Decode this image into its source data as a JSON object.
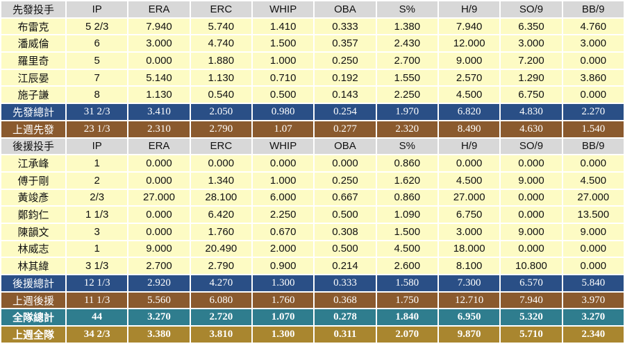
{
  "columns": [
    "IP",
    "ERA",
    "ERC",
    "WHIP",
    "OBA",
    "S%",
    "H/9",
    "SO/9",
    "BB/9"
  ],
  "sections": [
    {
      "header": "先發投手",
      "rows": [
        {
          "name": "布雷克",
          "values": [
            "5 2/3",
            "7.940",
            "5.740",
            "1.410",
            "0.333",
            "1.380",
            "7.940",
            "6.350",
            "4.760"
          ]
        },
        {
          "name": "潘威倫",
          "values": [
            "6",
            "3.000",
            "4.740",
            "1.500",
            "0.357",
            "2.430",
            "12.000",
            "3.000",
            "3.000"
          ]
        },
        {
          "name": "羅里奇",
          "values": [
            "5",
            "0.000",
            "1.880",
            "1.000",
            "0.250",
            "2.700",
            "9.000",
            "7.200",
            "0.000"
          ]
        },
        {
          "name": "江辰晏",
          "values": [
            "7",
            "5.140",
            "1.130",
            "0.710",
            "0.192",
            "1.550",
            "2.570",
            "1.290",
            "3.860"
          ]
        },
        {
          "name": "施子謙",
          "values": [
            "8",
            "1.130",
            "0.540",
            "0.500",
            "0.143",
            "2.250",
            "4.500",
            "6.750",
            "0.000"
          ]
        }
      ],
      "total": {
        "name": "先發總計",
        "values": [
          "31 2/3",
          "3.410",
          "2.050",
          "0.980",
          "0.254",
          "1.970",
          "6.820",
          "4.830",
          "2.270"
        ]
      },
      "last_week": {
        "name": "上週先發",
        "values": [
          "23 1/3",
          "2.310",
          "2.790",
          "1.07",
          "0.277",
          "2.320",
          "8.490",
          "4.630",
          "1.540"
        ]
      }
    },
    {
      "header": "後援投手",
      "rows": [
        {
          "name": "江承峰",
          "values": [
            "1",
            "0.000",
            "0.000",
            "0.000",
            "0.000",
            "0.860",
            "0.000",
            "0.000",
            "0.000"
          ]
        },
        {
          "name": "傅于剛",
          "values": [
            "2",
            "0.000",
            "1.340",
            "1.000",
            "0.250",
            "1.620",
            "4.500",
            "9.000",
            "4.500"
          ]
        },
        {
          "name": "黃竣彥",
          "values": [
            "2/3",
            "27.000",
            "28.100",
            "6.000",
            "0.667",
            "0.860",
            "27.000",
            "0.000",
            "27.000"
          ]
        },
        {
          "name": "鄭鈞仁",
          "values": [
            "1 1/3",
            "0.000",
            "6.420",
            "2.250",
            "0.500",
            "1.090",
            "6.750",
            "0.000",
            "13.500"
          ]
        },
        {
          "name": "陳韻文",
          "values": [
            "3",
            "0.000",
            "1.760",
            "0.670",
            "0.308",
            "1.500",
            "3.000",
            "9.000",
            "9.000"
          ]
        },
        {
          "name": "林威志",
          "values": [
            "1",
            "9.000",
            "20.490",
            "2.000",
            "0.500",
            "4.500",
            "18.000",
            "0.000",
            "0.000"
          ]
        },
        {
          "name": "林其緯",
          "values": [
            "3 1/3",
            "2.700",
            "2.790",
            "0.900",
            "0.214",
            "2.600",
            "8.100",
            "10.800",
            "0.000"
          ]
        }
      ],
      "total": {
        "name": "後援總計",
        "values": [
          "12 1/3",
          "2.920",
          "4.270",
          "1.300",
          "0.333",
          "1.580",
          "7.300",
          "6.570",
          "5.840"
        ]
      },
      "last_week": {
        "name": "上週後援",
        "values": [
          "11 1/3",
          "5.560",
          "6.080",
          "1.760",
          "0.368",
          "1.750",
          "12.710",
          "7.940",
          "3.970"
        ]
      }
    }
  ],
  "team_total": {
    "name": "全隊總計",
    "values": [
      "44",
      "3.270",
      "2.720",
      "1.070",
      "0.278",
      "1.840",
      "6.950",
      "5.320",
      "3.270"
    ]
  },
  "team_last_week": {
    "name": "上週全隊",
    "values": [
      "34 2/3",
      "3.380",
      "3.810",
      "1.300",
      "0.311",
      "2.070",
      "9.870",
      "5.710",
      "2.340"
    ]
  },
  "colors": {
    "header_bg": "#d8d8d8",
    "row_bg": "#fdfbc4",
    "total_bg": "#2a4f86",
    "last_week_bg": "#8a5a2e",
    "team_total_bg": "#2f7d8e",
    "team_last_week_bg": "#a9862f"
  }
}
